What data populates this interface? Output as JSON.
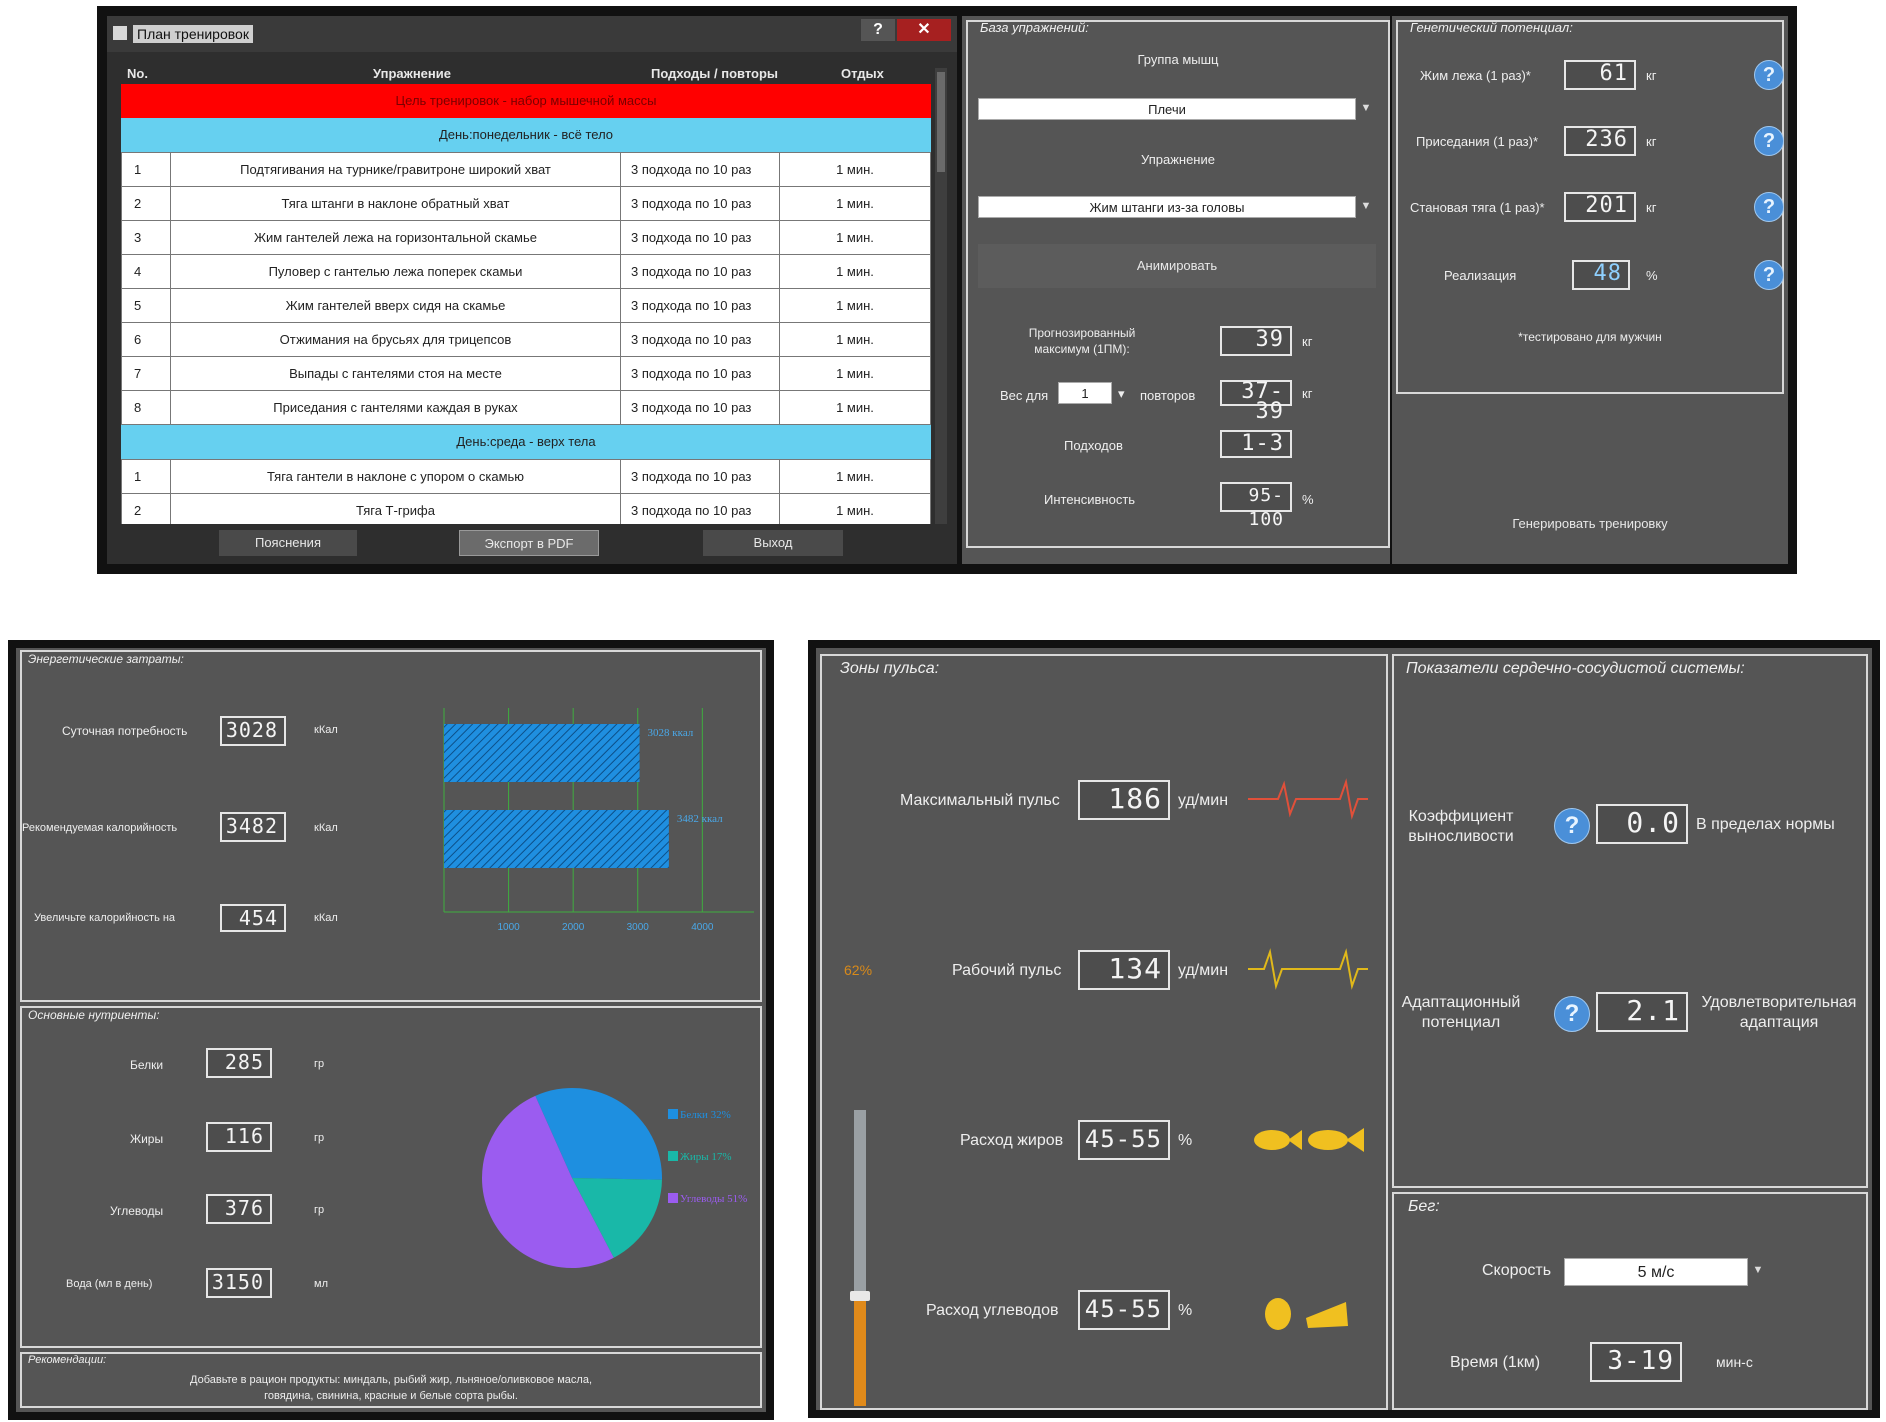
{
  "training_plan": {
    "window_title": "План тренировок",
    "help_btn": "?",
    "close_btn": "✕",
    "headers": {
      "no": "No.",
      "exercise": "Упражнение",
      "sets": "Подходы / повторы",
      "rest": "Отдых"
    },
    "goal_banner": "Цель тренировок - набор мышечной массы",
    "day1": "День:понедельник - всё тело",
    "day2": "День:среда - верх тела",
    "rows_day1": [
      {
        "no": "1",
        "exercise": "Подтягивания на турнике/гравитроне широкий хват",
        "sets": "3 подхода по 10 раз",
        "rest": "1 мин."
      },
      {
        "no": "2",
        "exercise": "Тяга штанги в наклоне обратный хват",
        "sets": "3 подхода по 10 раз",
        "rest": "1 мин."
      },
      {
        "no": "3",
        "exercise": "Жим гантелей лежа на горизонтальной скамье",
        "sets": "3 подхода по 10 раз",
        "rest": "1 мин."
      },
      {
        "no": "4",
        "exercise": "Пуловер с гантелью лежа поперек скамьи",
        "sets": "3 подхода по 10 раз",
        "rest": "1 мин."
      },
      {
        "no": "5",
        "exercise": "Жим гантелей вверх сидя на скамье",
        "sets": "3 подхода по 10 раз",
        "rest": "1 мин."
      },
      {
        "no": "6",
        "exercise": "Отжимания на брусьях для трицепсов",
        "sets": "3 подхода по 10 раз",
        "rest": "1 мин."
      },
      {
        "no": "7",
        "exercise": "Выпады с гантелями стоя на месте",
        "sets": "3 подхода по 10 раз",
        "rest": "1 мин."
      },
      {
        "no": "8",
        "exercise": "Приседания с гантелями каждая в руках",
        "sets": "3 подхода по 10 раз",
        "rest": "1 мин."
      }
    ],
    "rows_day2": [
      {
        "no": "1",
        "exercise": "Тяга гантели в наклоне с упором о скамью",
        "sets": "3 подхода по 10 раз",
        "rest": "1 мин."
      },
      {
        "no": "2",
        "exercise": "Тяга Т-грифа",
        "sets": "3 подхода по 10 раз",
        "rest": "1 мин."
      }
    ],
    "buttons": {
      "explain": "Пояснения",
      "export": "Экспорт в PDF",
      "exit": "Выход"
    }
  },
  "exercise_base": {
    "title": "База упражнений:",
    "muscle_group_label": "Группа мышц",
    "muscle_group_value": "Плечи",
    "exercise_label": "Упражнение",
    "exercise_value": "Жим штанги из-за головы",
    "animate_btn": "Анимировать",
    "forecast_label_1": "Прогнозированный",
    "forecast_label_2": "максимум (1ПМ):",
    "forecast_value": "39",
    "forecast_unit": "кг",
    "weight_label": "Вес для",
    "weight_reps": "1",
    "reps_label": "повторов",
    "weight_value": "37-39",
    "weight_unit": "кг",
    "sets_label": "Подходов",
    "sets_value": "1-3",
    "intensity_label": "Интенсивность",
    "intensity_value": "95-100",
    "intensity_unit": "%"
  },
  "genetic": {
    "title": "Генетический потенциал:",
    "bench_label": "Жим лежа (1 раз)*",
    "bench_value": "61",
    "squat_label": "Приседания (1 раз)*",
    "squat_value": "236",
    "deadlift_label": "Становая тяга (1 раз)*",
    "deadlift_value": "201",
    "unit_kg": "кг",
    "realization_label": "Реализация",
    "realization_value": "48",
    "realization_unit": "%",
    "note": "*тестировано для мужчин",
    "generate_btn": "Генерировать тренировку"
  },
  "energy": {
    "title": "Энергетические затраты:",
    "daily_label": "Суточная потребность",
    "daily_value": "3028",
    "recommended_label": "Рекомендуемая калорийность",
    "recommended_value": "3482",
    "increase_label": "Увеличьте калорийность на",
    "increase_value": "454",
    "unit": "кКал"
  },
  "nutrients": {
    "title": "Основные нутриенты:",
    "protein_label": "Белки",
    "protein_value": "285",
    "fat_label": "Жиры",
    "fat_value": "116",
    "carbs_label": "Углеводы",
    "carbs_value": "376",
    "water_label": "Вода (мл в день)",
    "water_value": "3150",
    "unit_g": "гр",
    "unit_ml": "мл"
  },
  "recommendations": {
    "title": "Рекомендации:",
    "line1": "Добавьте в рацион продукты: миндаль, рыбий жир, льняное/оливковое масла,",
    "line2": "говядина, свинина, красные и белые сорта рыбы."
  },
  "pulse": {
    "title": "Зоны пульса:",
    "max_label": "Максимальный пульс",
    "max_value": "186",
    "work_label": "Рабочий пульс",
    "work_value": "134",
    "unit_bpm": "уд/мин",
    "slider_pct_label": "62%",
    "slider_level": 0.37,
    "fat_label": "Расход жиров",
    "fat_value": "45-55",
    "carb_label": "Расход углеводов",
    "carb_value": "45-55",
    "pct": "%"
  },
  "cardio": {
    "title": "Показатели сердечно-сосудистой системы:",
    "endurance_label_1": "Коэффициент",
    "endurance_label_2": "выносливости",
    "endurance_value": "0.0",
    "endurance_status": "В пределах нормы",
    "adapt_label_1": "Адаптационный",
    "adapt_label_2": "потенциал",
    "adapt_value": "2.1",
    "adapt_status_1": "Удовлетворительная",
    "adapt_status_2": "адаптация"
  },
  "run": {
    "title": "Бег:",
    "speed_label": "Скорость",
    "speed_value": "5 м/с",
    "time_label": "Время (1км)",
    "time_value": "3-19",
    "time_unit": "мин-с"
  },
  "chart_data": [
    {
      "type": "bar",
      "orientation": "horizontal",
      "categories": [
        "Суточная потребность",
        "Рекомендуемая калорийность"
      ],
      "values": [
        3028,
        3482
      ],
      "data_labels": [
        "3028 ккал",
        "3482 ккал"
      ],
      "xticks": [
        "1000",
        "2000",
        "3000",
        "4000"
      ],
      "xlim": [
        0,
        4800
      ],
      "bar_color": "#1f8fe0"
    },
    {
      "type": "pie",
      "labels": [
        "Белки 32%",
        "Жиры 17%",
        "Углеводы 51%"
      ],
      "values": [
        32,
        17,
        51
      ],
      "colors": [
        "#1e8fe0",
        "#19b8a8",
        "#9b5cf0"
      ]
    }
  ],
  "colors": {
    "goal_banner": "#ff0000",
    "day_row": "#66d0f0",
    "panel": "#555555",
    "help": "#4a8fd8"
  }
}
